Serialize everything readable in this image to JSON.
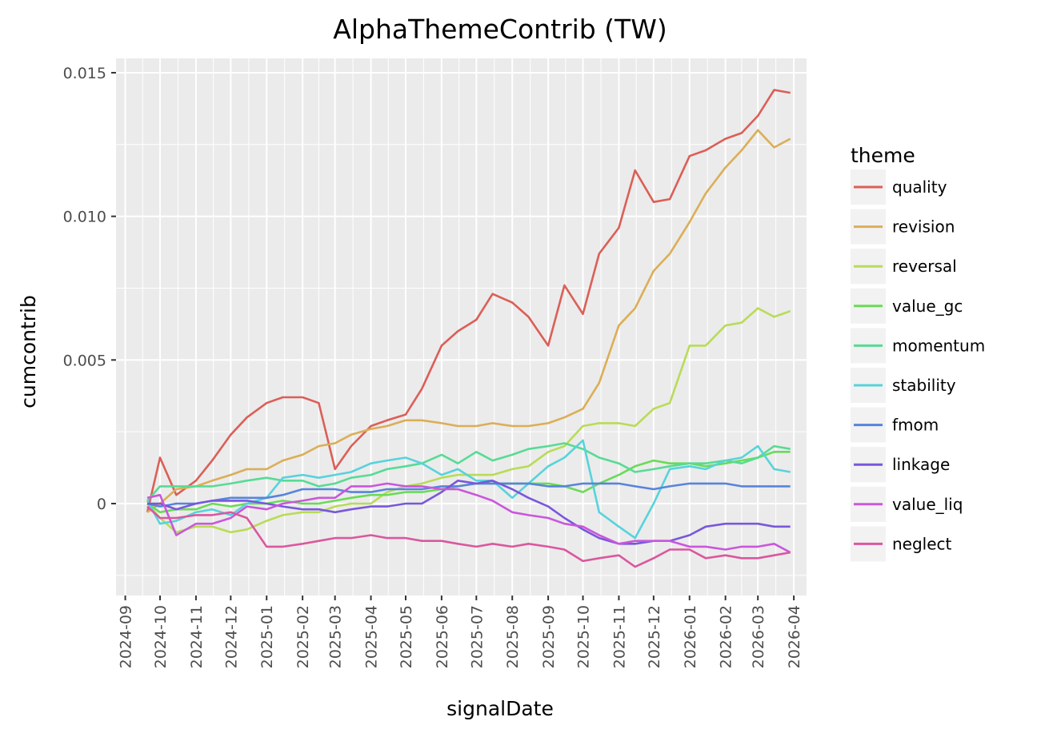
{
  "chart_data": {
    "type": "line",
    "title": "AlphaThemeContrib (TW)",
    "xlabel": "signalDate",
    "ylabel": "cumcontrib",
    "xlim": [
      "2024-08-24",
      "2026-04-12"
    ],
    "ylim": [
      -0.0032,
      0.0155
    ],
    "grid": true,
    "legend": {
      "title": "theme",
      "placement": "right"
    },
    "x_ticks": [
      "2024-09",
      "2024-10",
      "2024-11",
      "2024-12",
      "2025-01",
      "2025-02",
      "2025-03",
      "2025-04",
      "2025-05",
      "2025-06",
      "2025-07",
      "2025-08",
      "2025-09",
      "2025-10",
      "2025-11",
      "2025-12",
      "2026-01",
      "2026-02",
      "2026-03",
      "2026-04"
    ],
    "y_ticks": [
      {
        "value": 0,
        "label": "0"
      },
      {
        "value": 0.005,
        "label": "0.005"
      },
      {
        "value": 0.01,
        "label": "0.010"
      },
      {
        "value": 0.015,
        "label": "0.015"
      }
    ],
    "x": [
      "2024-09-20",
      "2024-10-01",
      "2024-10-15",
      "2024-11-01",
      "2024-11-15",
      "2024-12-01",
      "2024-12-15",
      "2025-01-01",
      "2025-01-15",
      "2025-02-01",
      "2025-02-15",
      "2025-03-01",
      "2025-03-15",
      "2025-04-01",
      "2025-04-15",
      "2025-05-01",
      "2025-05-15",
      "2025-06-01",
      "2025-06-15",
      "2025-07-01",
      "2025-07-15",
      "2025-08-01",
      "2025-08-15",
      "2025-09-01",
      "2025-09-15",
      "2025-10-01",
      "2025-10-15",
      "2025-11-01",
      "2025-11-15",
      "2025-12-01",
      "2025-12-15",
      "2026-01-01",
      "2026-01-15",
      "2026-02-01",
      "2026-02-15",
      "2026-03-01",
      "2026-03-15",
      "2026-03-29"
    ],
    "series": [
      {
        "name": "quality",
        "color": "#db5f57",
        "values": [
          -0.0003,
          0.0016,
          0.0003,
          0.0008,
          0.0015,
          0.0024,
          0.003,
          0.0035,
          0.0037,
          0.0037,
          0.0035,
          0.0012,
          0.002,
          0.0027,
          0.0029,
          0.0031,
          0.004,
          0.0055,
          0.006,
          0.0064,
          0.0073,
          0.007,
          0.0065,
          0.0055,
          0.0076,
          0.0066,
          0.0087,
          0.0096,
          0.0116,
          0.0105,
          0.0106,
          0.0121,
          0.0123,
          0.0127,
          0.0129,
          0.0135,
          0.0144,
          0.0143
        ]
      },
      {
        "name": "revision",
        "color": "#dbae57",
        "values": [
          -0.0003,
          0.0,
          0.0005,
          0.0006,
          0.0008,
          0.001,
          0.0012,
          0.0012,
          0.0015,
          0.0017,
          0.002,
          0.0021,
          0.0024,
          0.0026,
          0.0027,
          0.0029,
          0.0029,
          0.0028,
          0.0027,
          0.0027,
          0.0028,
          0.0027,
          0.0027,
          0.0028,
          0.003,
          0.0033,
          0.0042,
          0.0062,
          0.0068,
          0.0081,
          0.0087,
          0.0098,
          0.0108,
          0.0117,
          0.0123,
          0.013,
          0.0124,
          0.0127
        ]
      },
      {
        "name": "reversal",
        "color": "#b9db57",
        "values": [
          0.0,
          -0.0005,
          -0.001,
          -0.0008,
          -0.0008,
          -0.001,
          -0.0009,
          -0.0006,
          -0.0004,
          -0.0003,
          -0.0003,
          -0.0001,
          0.0,
          0.0,
          0.0004,
          0.0006,
          0.0007,
          0.0009,
          0.001,
          0.001,
          0.001,
          0.0012,
          0.0013,
          0.0018,
          0.002,
          0.0027,
          0.0028,
          0.0028,
          0.0027,
          0.0033,
          0.0035,
          0.0055,
          0.0055,
          0.0062,
          0.0063,
          0.0068,
          0.0065,
          0.0067
        ]
      },
      {
        "name": "value_gc",
        "color": "#69db57",
        "values": [
          0.0,
          -0.0003,
          -0.0002,
          -0.0002,
          0.0,
          -0.0001,
          0.0,
          0.0,
          0.0001,
          0.0,
          0.0,
          0.0001,
          0.0002,
          0.0003,
          0.0003,
          0.0004,
          0.0004,
          0.0005,
          0.0006,
          0.0007,
          0.0007,
          0.0007,
          0.0007,
          0.0007,
          0.0006,
          0.0004,
          0.0007,
          0.001,
          0.0013,
          0.0015,
          0.0014,
          0.0014,
          0.0013,
          0.0014,
          0.0015,
          0.0016,
          0.0018,
          0.0018
        ]
      },
      {
        "name": "momentum",
        "color": "#57db94",
        "values": [
          0.0001,
          0.0006,
          0.0006,
          0.0006,
          0.0006,
          0.0007,
          0.0008,
          0.0009,
          0.0008,
          0.0008,
          0.0006,
          0.0007,
          0.0009,
          0.001,
          0.0012,
          0.0013,
          0.0014,
          0.0017,
          0.0014,
          0.0018,
          0.0015,
          0.0017,
          0.0019,
          0.002,
          0.0021,
          0.0019,
          0.0016,
          0.0014,
          0.0011,
          0.0012,
          0.0013,
          0.0014,
          0.0014,
          0.0015,
          0.0014,
          0.0016,
          0.002,
          0.0019
        ]
      },
      {
        "name": "stability",
        "color": "#57d3db",
        "values": [
          0.0001,
          -0.0007,
          -0.0006,
          -0.0003,
          -0.0002,
          -0.0004,
          0.0,
          0.0002,
          0.0009,
          0.001,
          0.0009,
          0.001,
          0.0011,
          0.0014,
          0.0015,
          0.0016,
          0.0014,
          0.001,
          0.0012,
          0.0008,
          0.0008,
          0.0002,
          0.0007,
          0.0013,
          0.0016,
          0.0022,
          -0.0003,
          -0.0008,
          -0.0012,
          0.0,
          0.0012,
          0.0013,
          0.0012,
          0.0015,
          0.0016,
          0.002,
          0.0012,
          0.0011
        ]
      },
      {
        "name": "fmom",
        "color": "#5784db",
        "values": [
          0.0,
          -0.0001,
          0.0,
          0.0,
          0.0001,
          0.0002,
          0.0002,
          0.0002,
          0.0003,
          0.0005,
          0.0005,
          0.0005,
          0.0004,
          0.0004,
          0.0005,
          0.0005,
          0.0005,
          0.0006,
          0.0006,
          0.0007,
          0.0007,
          0.0007,
          0.0007,
          0.0006,
          0.0006,
          0.0007,
          0.0007,
          0.0007,
          0.0006,
          0.0005,
          0.0006,
          0.0007,
          0.0007,
          0.0007,
          0.0006,
          0.0006,
          0.0006,
          0.0006
        ]
      },
      {
        "name": "linkage",
        "color": "#7957db",
        "values": [
          0.0,
          0.0,
          -0.0002,
          0.0,
          0.0001,
          0.0001,
          0.0001,
          0.0,
          -0.0001,
          -0.0002,
          -0.0002,
          -0.0003,
          -0.0002,
          -0.0001,
          -0.0001,
          0.0,
          0.0,
          0.0004,
          0.0008,
          0.0007,
          0.0008,
          0.0005,
          0.0002,
          -0.0001,
          -0.0005,
          -0.0009,
          -0.0012,
          -0.0014,
          -0.0014,
          -0.0013,
          -0.0013,
          -0.0011,
          -0.0008,
          -0.0007,
          -0.0007,
          -0.0007,
          -0.0008,
          -0.0008
        ]
      },
      {
        "name": "value_liq",
        "color": "#c957db",
        "values": [
          0.0002,
          0.0003,
          -0.0011,
          -0.0007,
          -0.0007,
          -0.0005,
          -0.0001,
          -0.0002,
          0.0,
          0.0001,
          0.0002,
          0.0002,
          0.0006,
          0.0006,
          0.0007,
          0.0006,
          0.0006,
          0.0005,
          0.0005,
          0.0003,
          0.0001,
          -0.0003,
          -0.0004,
          -0.0005,
          -0.0007,
          -0.0008,
          -0.0011,
          -0.0014,
          -0.0013,
          -0.0013,
          -0.0013,
          -0.0015,
          -0.0015,
          -0.0016,
          -0.0015,
          -0.0015,
          -0.0014,
          -0.0017
        ]
      },
      {
        "name": "neglect",
        "color": "#db579e",
        "values": [
          -0.0001,
          -0.0005,
          -0.0005,
          -0.0004,
          -0.0004,
          -0.0003,
          -0.0005,
          -0.0015,
          -0.0015,
          -0.0014,
          -0.0013,
          -0.0012,
          -0.0012,
          -0.0011,
          -0.0012,
          -0.0012,
          -0.0013,
          -0.0013,
          -0.0014,
          -0.0015,
          -0.0014,
          -0.0015,
          -0.0014,
          -0.0015,
          -0.0016,
          -0.002,
          -0.0019,
          -0.0018,
          -0.0022,
          -0.0019,
          -0.0016,
          -0.0016,
          -0.0019,
          -0.0018,
          -0.0019,
          -0.0019,
          -0.0018,
          -0.0017
        ]
      }
    ]
  }
}
